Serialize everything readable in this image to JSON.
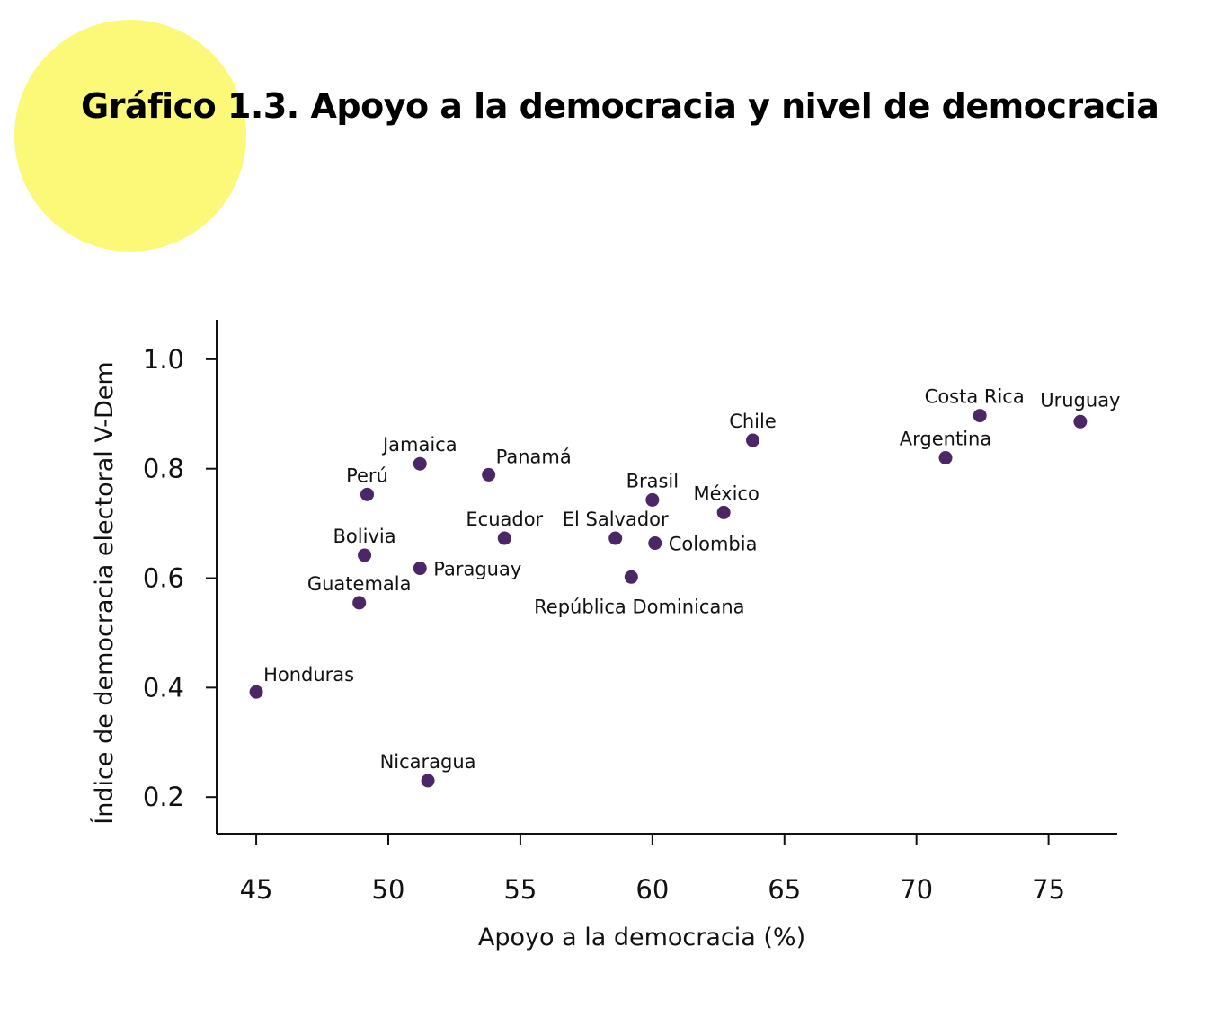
{
  "title": "Gráfico 1.3. Apoyo a la democracia y nivel de democracia",
  "colors": {
    "point": "#4b2768",
    "circle": "#fbf977",
    "axis": "#111111"
  },
  "chart_data": {
    "type": "scatter",
    "xlabel": "Apoyo a la democracia (%)",
    "ylabel": "Índice de democracia electoral V-Dem",
    "xlim": [
      43.5,
      77.6
    ],
    "ylim": [
      0.133,
      1.072
    ],
    "xticks": [
      45,
      50,
      55,
      60,
      65,
      70,
      75
    ],
    "yticks": [
      0.2,
      0.4,
      0.6,
      0.8,
      1.0
    ],
    "ytick_labels": [
      "0.2",
      "0.4",
      "0.6",
      "0.8",
      "1.0"
    ],
    "points": [
      {
        "label": "Honduras",
        "x": 45.0,
        "y": 0.392,
        "anchor": "start",
        "dx": 8,
        "dy": -12
      },
      {
        "label": "Guatemala",
        "x": 48.9,
        "y": 0.555,
        "anchor": "middle",
        "dx": 0,
        "dy": -14
      },
      {
        "label": "Bolivia",
        "x": 49.1,
        "y": 0.642,
        "anchor": "middle",
        "dx": 0,
        "dy": -14
      },
      {
        "label": "Perú",
        "x": 49.2,
        "y": 0.753,
        "anchor": "middle",
        "dx": 0,
        "dy": -14
      },
      {
        "label": "Jamaica",
        "x": 51.2,
        "y": 0.809,
        "anchor": "middle",
        "dx": 0,
        "dy": -14
      },
      {
        "label": "Paraguay",
        "x": 51.2,
        "y": 0.618,
        "anchor": "start",
        "dx": 15,
        "dy": 8
      },
      {
        "label": "Nicaragua",
        "x": 51.5,
        "y": 0.23,
        "anchor": "middle",
        "dx": 0,
        "dy": -14
      },
      {
        "label": "Panamá",
        "x": 53.8,
        "y": 0.789,
        "anchor": "start",
        "dx": 8,
        "dy": -13
      },
      {
        "label": "Ecuador",
        "x": 54.4,
        "y": 0.673,
        "anchor": "middle",
        "dx": 0,
        "dy": -14
      },
      {
        "label": "El Salvador",
        "x": 58.6,
        "y": 0.673,
        "anchor": "middle",
        "dx": 0,
        "dy": -14
      },
      {
        "label": "República Dominicana",
        "x": 59.2,
        "y": 0.602,
        "anchor": "middle",
        "dx": 9,
        "dy": 40
      },
      {
        "label": "Brasil",
        "x": 60.0,
        "y": 0.743,
        "anchor": "middle",
        "dx": 0,
        "dy": -14
      },
      {
        "label": "Colombia",
        "x": 60.1,
        "y": 0.664,
        "anchor": "start",
        "dx": 15,
        "dy": 8
      },
      {
        "label": "México",
        "x": 62.7,
        "y": 0.72,
        "anchor": "middle",
        "dx": 3,
        "dy": -14
      },
      {
        "label": "Chile",
        "x": 63.8,
        "y": 0.852,
        "anchor": "middle",
        "dx": 0,
        "dy": -14
      },
      {
        "label": "Argentina",
        "x": 71.1,
        "y": 0.82,
        "anchor": "middle",
        "dx": 0,
        "dy": -14
      },
      {
        "label": "Costa Rica",
        "x": 72.4,
        "y": 0.897,
        "anchor": "middle",
        "dx": -6,
        "dy": -14
      },
      {
        "label": "Uruguay",
        "x": 76.2,
        "y": 0.886,
        "anchor": "middle",
        "dx": 0,
        "dy": -17
      }
    ]
  }
}
